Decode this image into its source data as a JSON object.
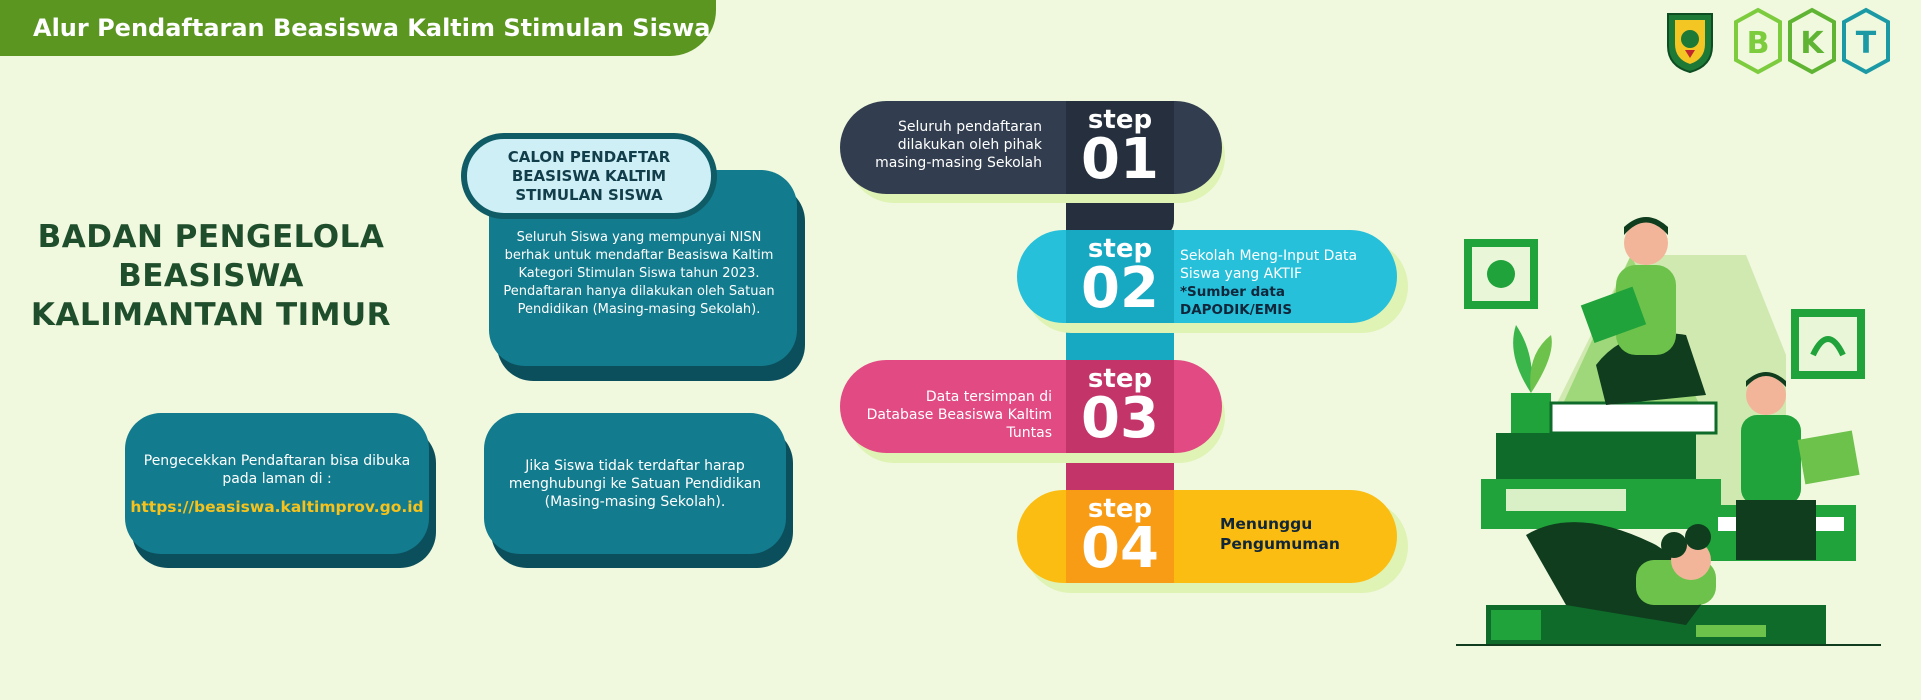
{
  "header": {
    "title": "Alur Pendaftaran Beasiswa Kaltim Stimulan Siswa"
  },
  "logos": {
    "emblem": "kaltim-emblem-icon",
    "brand_letters": [
      "B",
      "K",
      "T"
    ]
  },
  "org": {
    "name": "BADAN PENGELOLA BEASISWA KALIMANTAN TIMUR"
  },
  "candidate": {
    "title": "CALON PENDAFTAR BEASISWA KALTIM STIMULAN SISWA",
    "description": "Seluruh Siswa yang mempunyai NISN berhak untuk mendaftar Beasiswa Kaltim Kategori Stimulan Siswa tahun 2023. Pendaftaran hanya dilakukan oleh Satuan Pendidikan (Masing-masing Sekolah)."
  },
  "check": {
    "text": "Pengecekkan Pendaftaran bisa dibuka pada laman di :",
    "link": "https://beasiswa.kaltimprov.go.id"
  },
  "contact": {
    "text": "Jika Siswa tidak terdaftar harap menghubungi ke Satuan Pendidikan (Masing-masing Sekolah)."
  },
  "steps": [
    {
      "label": "step",
      "number": "01",
      "text": "Seluruh pendaftaran dilakukan oleh pihak masing-masing Sekolah",
      "color": "#323e4f",
      "dark": "#252f3d"
    },
    {
      "label": "step",
      "number": "02",
      "text": "Sekolah Meng-Input Data Siswa yang AKTIF",
      "note": "*Sumber data DAPODIK/EMIS",
      "color": "#27c0da",
      "dark": "#17a8c2"
    },
    {
      "label": "step",
      "number": "03",
      "text": "Data tersimpan di Database Beasiswa Kaltim Tuntas",
      "color": "#e14a82",
      "dark": "#c33468"
    },
    {
      "label": "step",
      "number": "04",
      "text": "Menunggu Pengumuman",
      "color": "#fbbd12",
      "dark": "#f89c15"
    }
  ],
  "colors": {
    "background": "#f0f8de",
    "header": "#5b9621",
    "teal": "#127b8d",
    "link": "#f6c21b",
    "illustration_green": "#1fa33a"
  }
}
